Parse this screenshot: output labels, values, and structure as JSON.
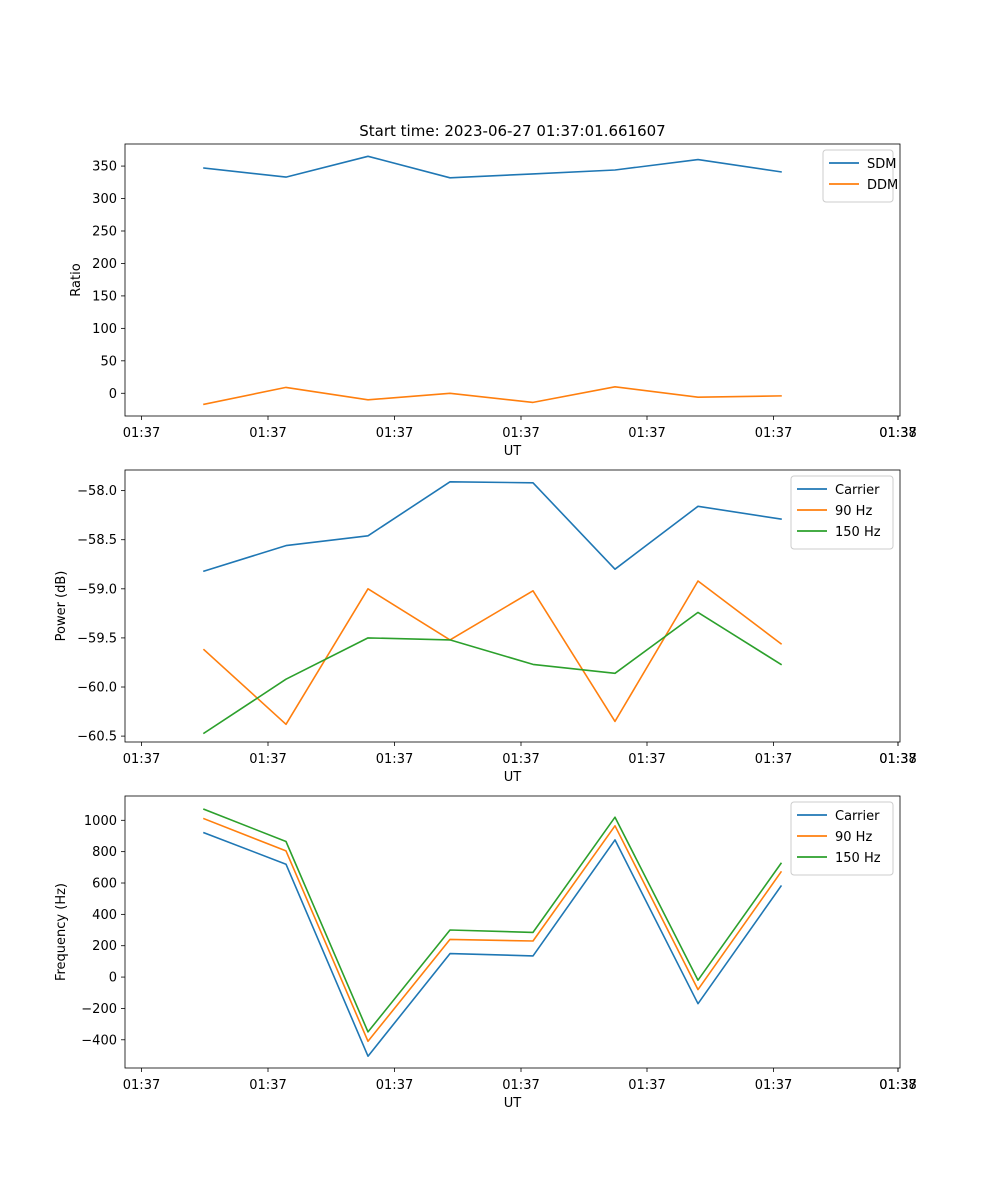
{
  "figure": {
    "title": "Start time: 2023-06-27 01:37:01.661607"
  },
  "colors": {
    "blue": "#1f77b4",
    "orange": "#ff7f0e",
    "green": "#2ca02c"
  },
  "chart_data": [
    {
      "type": "line",
      "title": "Start time: 2023-06-27 01:37:01.661607",
      "xlabel": "UT",
      "ylabel": "Ratio",
      "x_tick_labels": [
        "01:37",
        "01:37",
        "01:37",
        "01:37",
        "01:37",
        "01:37",
        "01:37",
        "01:38"
      ],
      "y_ticks": [
        0,
        50,
        100,
        150,
        200,
        250,
        300,
        350
      ],
      "ylim": [
        -35,
        384
      ],
      "grid": false,
      "legend": "top-right",
      "series": [
        {
          "name": "SDM",
          "color": "#1f77b4",
          "values": [
            347,
            333,
            365,
            332,
            338,
            344,
            360,
            341
          ]
        },
        {
          "name": "DDM",
          "color": "#ff7f0e",
          "values": [
            -17,
            9,
            -10,
            0,
            -14,
            10,
            -6,
            -4
          ]
        }
      ]
    },
    {
      "type": "line",
      "title": "",
      "xlabel": "UT",
      "ylabel": "Power (dB)",
      "x_tick_labels": [
        "01:37",
        "01:37",
        "01:37",
        "01:37",
        "01:37",
        "01:37",
        "01:37",
        "01:38"
      ],
      "y_ticks": [
        -60.5,
        -60.0,
        -59.5,
        -59.0,
        -58.5,
        -58.0
      ],
      "y_tick_labels": [
        "−60.5",
        "−60.0",
        "−59.5",
        "−59.0",
        "−58.5",
        "−58.0"
      ],
      "ylim": [
        -60.56,
        -57.79
      ],
      "grid": false,
      "legend": "top-right",
      "series": [
        {
          "name": "Carrier",
          "color": "#1f77b4",
          "values": [
            -58.82,
            -58.56,
            -58.46,
            -57.91,
            -57.92,
            -58.8,
            -58.16,
            -58.29
          ]
        },
        {
          "name": "90 Hz",
          "color": "#ff7f0e",
          "values": [
            -59.62,
            -60.38,
            -59.0,
            -59.52,
            -59.02,
            -60.35,
            -58.92,
            -59.56
          ]
        },
        {
          "name": "150 Hz",
          "color": "#2ca02c",
          "values": [
            -60.47,
            -59.92,
            -59.5,
            -59.52,
            -59.77,
            -59.86,
            -59.24,
            -59.77
          ]
        }
      ]
    },
    {
      "type": "line",
      "title": "",
      "xlabel": "UT",
      "ylabel": "Frequency (Hz)",
      "x_tick_labels": [
        "01:37",
        "01:37",
        "01:37",
        "01:37",
        "01:37",
        "01:37",
        "01:37",
        "01:38"
      ],
      "y_ticks": [
        -400,
        -200,
        0,
        200,
        400,
        600,
        800,
        1000
      ],
      "y_tick_labels": [
        "−400",
        "−200",
        "0",
        "200",
        "400",
        "600",
        "800",
        "1000"
      ],
      "ylim": [
        -580,
        1155
      ],
      "grid": false,
      "legend": "top-right",
      "series": [
        {
          "name": "Carrier",
          "color": "#1f77b4",
          "values": [
            920,
            720,
            -505,
            150,
            135,
            875,
            -170,
            580
          ]
        },
        {
          "name": "90 Hz",
          "color": "#ff7f0e",
          "values": [
            1010,
            805,
            -410,
            240,
            230,
            965,
            -80,
            670
          ]
        },
        {
          "name": "150 Hz",
          "color": "#2ca02c",
          "values": [
            1070,
            865,
            -350,
            300,
            285,
            1020,
            -20,
            725
          ]
        }
      ]
    }
  ]
}
